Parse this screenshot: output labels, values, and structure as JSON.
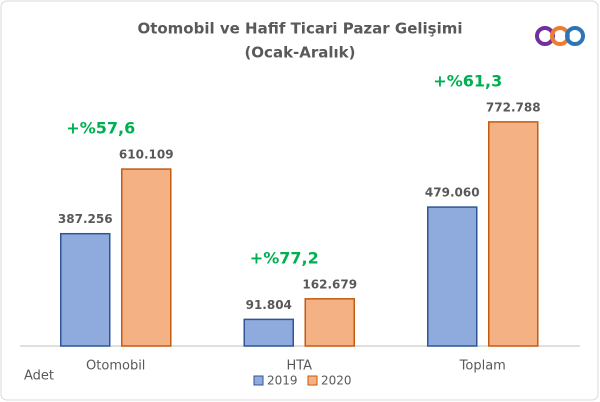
{
  "chart_data": {
    "type": "bar",
    "title": "Otomobil ve Hafif Ticari Pazar Gelişimi",
    "subtitle": "(Ocak-Aralık)",
    "y_label": "Adet",
    "categories": [
      "Otomobil",
      "HTA",
      "Toplam"
    ],
    "series": [
      {
        "name": "2019",
        "color": "#8faadc",
        "edge_color": "#2f5597",
        "values": [
          387256,
          91804,
          479060
        ],
        "value_labels": [
          "387.256",
          "91.804",
          "479.060"
        ]
      },
      {
        "name": "2020",
        "color": "#f4b183",
        "edge_color": "#c55a11",
        "values": [
          610109,
          162679,
          772788
        ],
        "value_labels": [
          "610.109",
          "162.679",
          "772.788"
        ]
      }
    ],
    "annotations": [
      "+%57,6",
      "+%77,2",
      "+%61,3"
    ],
    "annotation_color": "#00b050",
    "ylim": [
      0,
      900000
    ]
  }
}
